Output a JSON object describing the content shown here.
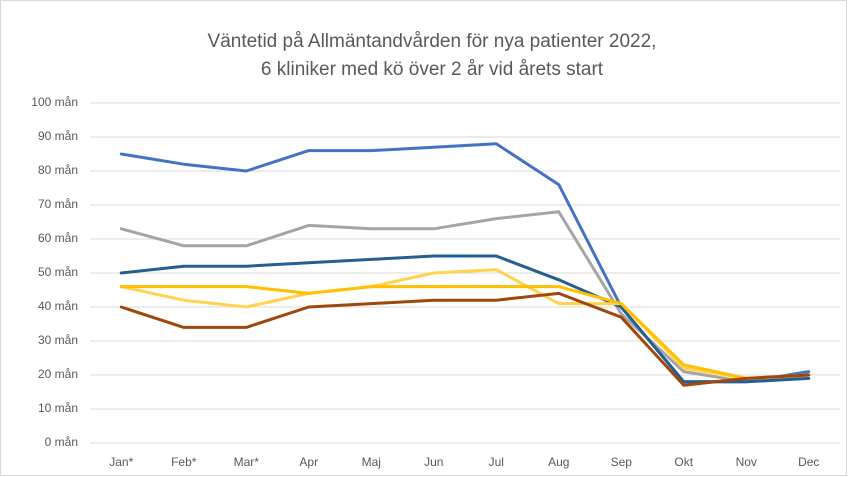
{
  "chart_data": {
    "type": "line",
    "title": "Väntetid på Allmäntandvården för nya patienter 2022,",
    "subtitle": "6 kliniker med kö över 2 år vid årets start",
    "categories": [
      "Jan*",
      "Feb*",
      "Mar*",
      "Apr",
      "Maj",
      "Jun",
      "Jul",
      "Aug",
      "Sep",
      "Okt",
      "Nov",
      "Dec"
    ],
    "series": [
      {
        "color": "#4472c4",
        "values": [
          85,
          82,
          80,
          86,
          86,
          87,
          88,
          76,
          40,
          18,
          18,
          21
        ]
      },
      {
        "color": "#a5a5a5",
        "values": [
          63,
          58,
          58,
          64,
          63,
          63,
          66,
          68,
          38,
          21,
          18,
          20
        ]
      },
      {
        "color": "#255e91",
        "values": [
          50,
          52,
          52,
          53,
          54,
          55,
          55,
          48,
          40,
          18,
          18,
          19
        ]
      },
      {
        "color": "#ffd34d",
        "values": [
          46,
          42,
          40,
          44,
          46,
          50,
          51,
          41,
          41,
          22,
          19,
          20
        ]
      },
      {
        "color": "#ffc000",
        "values": [
          46,
          46,
          46,
          44,
          46,
          46,
          46,
          46,
          41,
          23,
          19,
          20
        ]
      },
      {
        "color": "#9e480e",
        "values": [
          40,
          34,
          34,
          40,
          41,
          42,
          42,
          44,
          37,
          17,
          19,
          20
        ]
      }
    ],
    "ylim": [
      0,
      100
    ],
    "yticks": [
      {
        "value": 0,
        "label": "0 mån"
      },
      {
        "value": 10,
        "label": "10 mån"
      },
      {
        "value": 20,
        "label": "20 mån"
      },
      {
        "value": 30,
        "label": "30 mån"
      },
      {
        "value": 40,
        "label": "40 mån"
      },
      {
        "value": 50,
        "label": "50 mån"
      },
      {
        "value": 60,
        "label": "60 mån"
      },
      {
        "value": 70,
        "label": "70 mån"
      },
      {
        "value": 80,
        "label": "80 mån"
      },
      {
        "value": 90,
        "label": "90 mån"
      },
      {
        "value": 100,
        "label": "100 mån"
      }
    ],
    "grid": true
  }
}
